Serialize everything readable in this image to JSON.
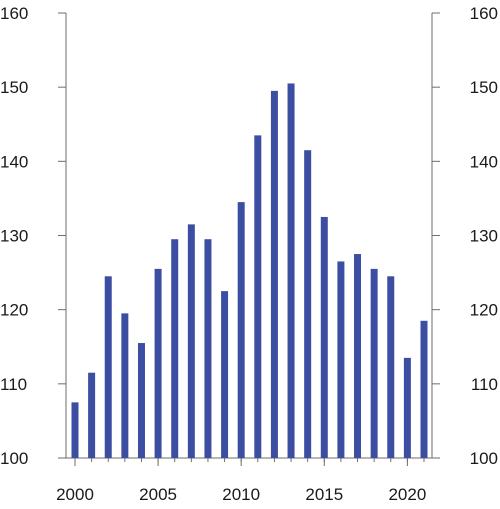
{
  "chart_data": {
    "type": "bar",
    "x": [
      2000,
      2001,
      2002,
      2003,
      2004,
      2005,
      2006,
      2007,
      2008,
      2009,
      2010,
      2011,
      2012,
      2013,
      2014,
      2015,
      2016,
      2017,
      2018,
      2019,
      2020,
      2021
    ],
    "values": [
      107.5,
      111.5,
      124.5,
      119.5,
      115.5,
      125.5,
      129.5,
      131.5,
      129.5,
      122.5,
      134.5,
      143.5,
      149.5,
      150.5,
      141.5,
      132.5,
      126.5,
      127.5,
      125.5,
      124.5,
      113.5,
      118.5
    ],
    "x_tick_labels": [
      "2000",
      "2005",
      "2010",
      "2015",
      "2020"
    ],
    "y_tick_labels": [
      "100",
      "110",
      "120",
      "130",
      "140",
      "150",
      "160"
    ],
    "ylim": [
      100,
      160
    ],
    "title": "",
    "xlabel": "",
    "ylabel": "",
    "grid": false,
    "bar_color": "#3b4ea2"
  }
}
